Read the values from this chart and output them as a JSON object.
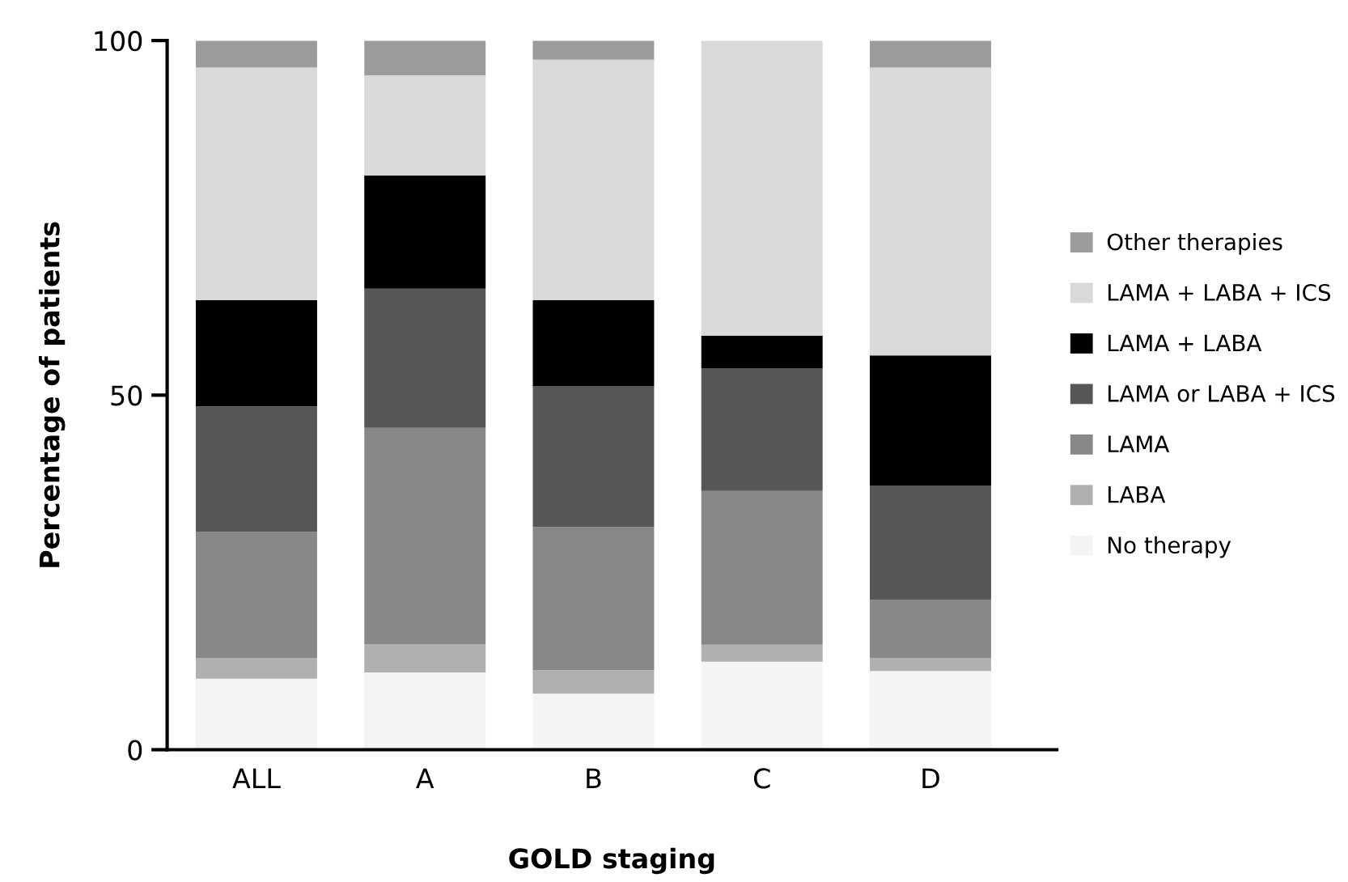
{
  "chart_data": {
    "type": "bar",
    "stacked": true,
    "xlabel": "GOLD staging",
    "ylabel": "Percentage of patients",
    "categories": [
      "ALL",
      "A",
      "B",
      "C",
      "D"
    ],
    "ylim": [
      0,
      100
    ],
    "yticks": [
      0,
      50,
      100
    ],
    "grid": false,
    "legend": "right",
    "series": [
      {
        "name": "No therapy",
        "color": "#f4f4f4",
        "values": [
          10.0,
          10.9,
          7.9,
          12.4,
          11.1
        ]
      },
      {
        "name": "LABA",
        "color": "#b0b0b0",
        "values": [
          2.9,
          4.0,
          3.3,
          2.4,
          1.8
        ]
      },
      {
        "name": "LAMA",
        "color": "#888888",
        "values": [
          17.8,
          30.5,
          20.2,
          21.7,
          8.2
        ]
      },
      {
        "name": "LAMA or LABA + ICS",
        "color": "#575757",
        "values": [
          17.7,
          19.6,
          19.9,
          17.3,
          16.1
        ]
      },
      {
        "name": "LAMA + LABA",
        "color": "#000000",
        "values": [
          15.0,
          16.0,
          12.1,
          4.6,
          18.4
        ]
      },
      {
        "name": "LAMA + LABA + ICS",
        "color": "#d9d9d9",
        "values": [
          32.8,
          14.1,
          33.9,
          41.6,
          40.6
        ]
      },
      {
        "name": "Other therapies",
        "color": "#9c9c9c",
        "values": [
          3.8,
          4.9,
          2.7,
          0,
          3.8
        ]
      }
    ]
  }
}
